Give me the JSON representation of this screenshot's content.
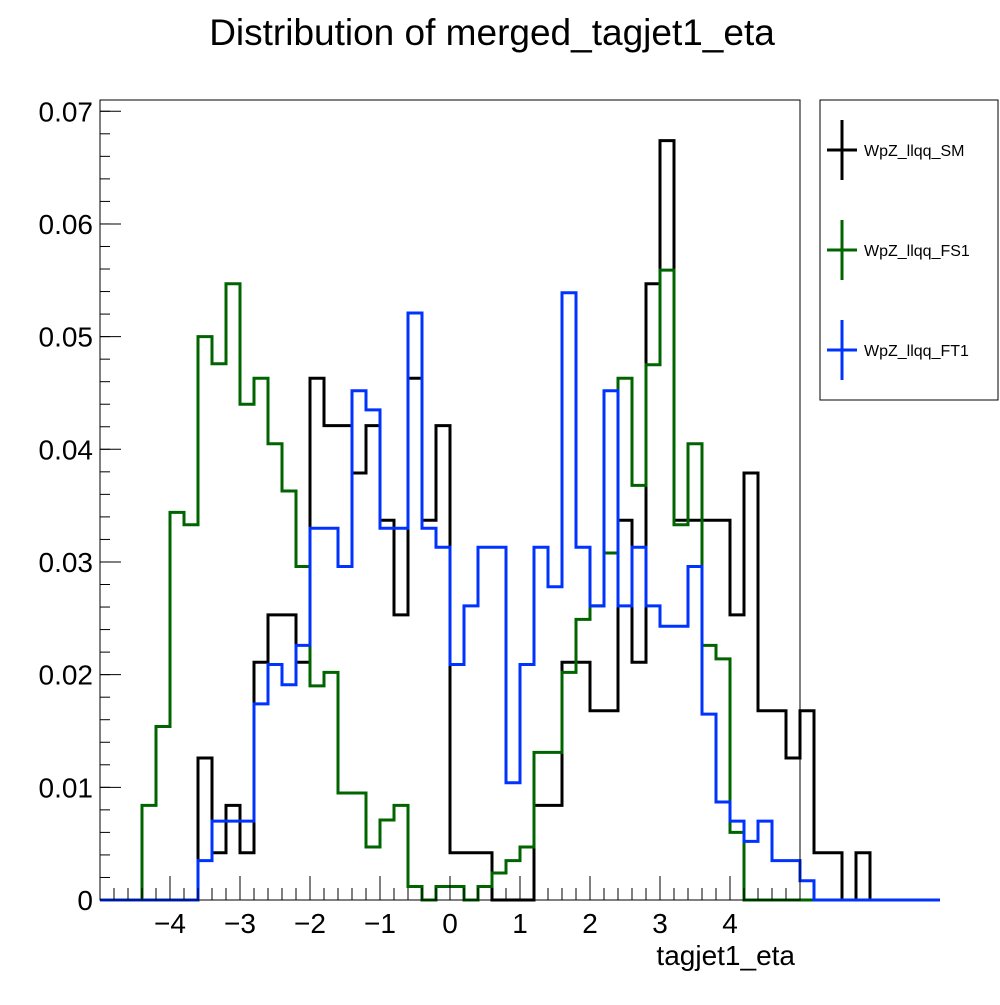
{
  "chart_data": {
    "type": "histogram",
    "title": "Distribution of merged_tagjet1_eta",
    "xlabel": "tagjet1_eta",
    "ylabel": "",
    "xlim": [
      -5.0,
      5.0
    ],
    "ylim": [
      0,
      0.071
    ],
    "grid": false,
    "legend_position": "right-outside",
    "bin_width": 0.2,
    "x_ticks": [
      -4,
      -3,
      -2,
      -1,
      0,
      1,
      2,
      3,
      4
    ],
    "x_tick_labels": [
      "−4",
      "−3",
      "−2",
      "−1",
      "0",
      "1",
      "2",
      "3",
      "4"
    ],
    "y_ticks": [
      0,
      0.01,
      0.02,
      0.03,
      0.04,
      0.05,
      0.06,
      0.07
    ],
    "y_tick_labels": [
      "0",
      "0.01",
      "0.02",
      "0.03",
      "0.04",
      "0.05",
      "0.06",
      "0.07"
    ],
    "series": [
      {
        "name": "WpZ_llqq_SM",
        "color": "#000000",
        "values": [
          0,
          0,
          0,
          0,
          0,
          0,
          0,
          0.0126,
          0.0042,
          0.0084,
          0.0042,
          0.0211,
          0.0253,
          0.0253,
          0.0211,
          0.0463,
          0.0421,
          0.0421,
          0.0379,
          0.0421,
          0.0337,
          0.0253,
          0.0463,
          0.0337,
          0.0421,
          0.0042,
          0.0042,
          0.0042,
          0,
          0,
          0,
          0.0084,
          0.0084,
          0.0211,
          0.0211,
          0.0168,
          0.0168,
          0.0337,
          0.0211,
          0.0547,
          0.0674,
          0.0337,
          0.0337,
          0.0337,
          0.0337,
          0.0253,
          0.0379,
          0.0168,
          0.0168,
          0.0126,
          0.0168,
          0.0042,
          0.0042,
          0,
          0.0042,
          0,
          0,
          0,
          0,
          0
        ]
      },
      {
        "name": "WpZ_llqq_FS1",
        "color": "#006400",
        "values": [
          0,
          0,
          0,
          0.0084,
          0.0154,
          0.0344,
          0.0333,
          0.05,
          0.0476,
          0.0547,
          0.044,
          0.0463,
          0.0405,
          0.0363,
          0.0296,
          0.019,
          0.0202,
          0.0095,
          0.0095,
          0.0047,
          0.0071,
          0.0084,
          0.0012,
          0,
          0.0012,
          0.0012,
          0,
          0.0012,
          0.0024,
          0.0035,
          0.0047,
          0.0131,
          0.0131,
          0.0202,
          0.0249,
          0.0261,
          0.0308,
          0.0463,
          0.0368,
          0.0475,
          0.0559,
          0.0333,
          0.0405,
          0.0226,
          0.0214,
          0.006,
          0,
          0,
          0,
          0,
          0,
          0,
          0,
          0,
          0,
          0,
          0,
          0,
          0,
          0
        ]
      },
      {
        "name": "WpZ_llqq_FT1",
        "color": "#0033ff",
        "values": [
          0,
          0,
          0,
          0,
          0,
          0,
          0,
          0.0035,
          0.007,
          0.007,
          0.007,
          0.0174,
          0.0209,
          0.0191,
          0.0226,
          0.033,
          0.033,
          0.0296,
          0.0452,
          0.0435,
          0.033,
          0.033,
          0.0521,
          0.033,
          0.0313,
          0.0209,
          0.0261,
          0.0313,
          0.0313,
          0.0104,
          0.0209,
          0.0313,
          0.0278,
          0.0539,
          0.0313,
          0.0261,
          0.0452,
          0.0261,
          0.0313,
          0.0261,
          0.0243,
          0.0243,
          0.0296,
          0.0165,
          0.0087,
          0.007,
          0.0052,
          0.007,
          0.0035,
          0.0035,
          0.0017,
          0,
          0,
          0,
          0,
          0,
          0,
          0,
          0,
          0
        ]
      }
    ]
  }
}
